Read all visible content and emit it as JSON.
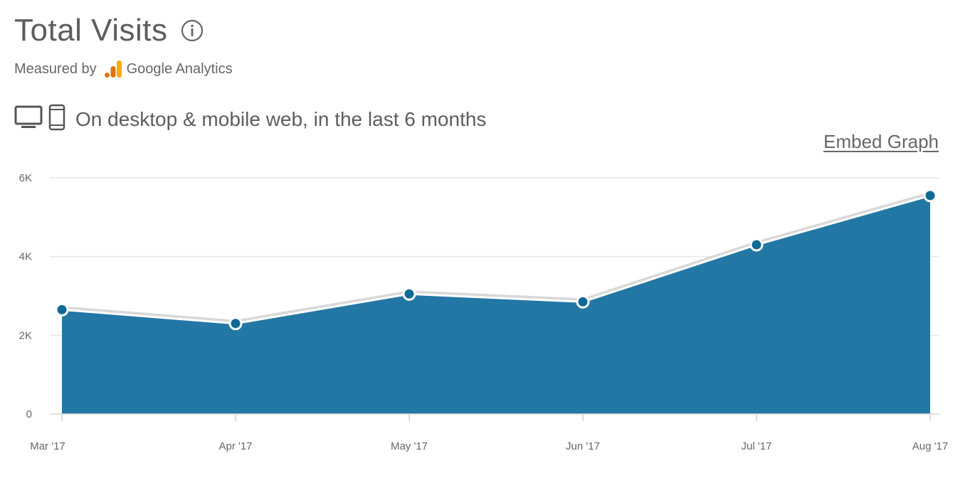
{
  "header": {
    "title": "Total Visits",
    "measured_by": "Measured by",
    "provider": "Google Analytics",
    "device_text": "On desktop & mobile web, in the last 6 months",
    "embed_label": "Embed Graph"
  },
  "icons": {
    "info": "info-icon",
    "desktop": "desktop-icon",
    "mobile": "mobile-icon",
    "ga_logo": "google-analytics-logo"
  },
  "colors": {
    "area": "#2377a4",
    "point": "#0e6997",
    "grid": "#e6e6e6",
    "ga_orange": "#f9ab00",
    "ga_dark": "#e37400"
  },
  "chart_data": {
    "type": "area",
    "categories": [
      "Mar '17",
      "Apr '17",
      "May '17",
      "Jun '17",
      "Jul '17",
      "Aug '17"
    ],
    "values": [
      2650,
      2300,
      3050,
      2850,
      4300,
      5550
    ],
    "y_ticks": [
      "0",
      "2K",
      "4K",
      "6K"
    ],
    "y_tick_values": [
      0,
      2000,
      4000,
      6000
    ],
    "ylim": [
      0,
      6000
    ],
    "grid": true,
    "legend": "none"
  }
}
